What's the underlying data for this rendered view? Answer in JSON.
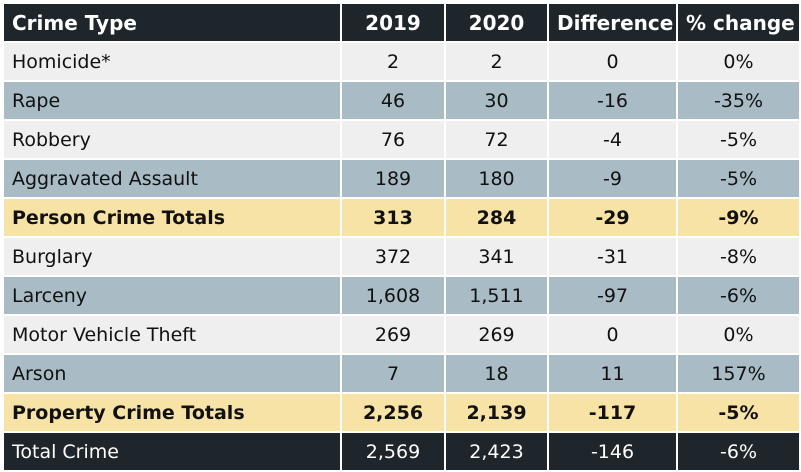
{
  "table": {
    "headers": [
      "Crime Type",
      "2019",
      "2020",
      "Difference",
      "% change"
    ],
    "rows": [
      {
        "type": "light",
        "cells": [
          "Homicide*",
          "2",
          "2",
          "0",
          "0%"
        ]
      },
      {
        "type": "blue",
        "cells": [
          "Rape",
          "46",
          "30",
          "-16",
          "-35%"
        ]
      },
      {
        "type": "light",
        "cells": [
          "Robbery",
          "76",
          "72",
          "-4",
          "-5%"
        ]
      },
      {
        "type": "blue",
        "cells": [
          "Aggravated Assault",
          "189",
          "180",
          "-9",
          "-5%"
        ]
      },
      {
        "type": "total",
        "cells": [
          "Person Crime Totals",
          "313",
          "284",
          "-29",
          "-9%"
        ]
      },
      {
        "type": "light",
        "cells": [
          "Burglary",
          "372",
          "341",
          "-31",
          "-8%"
        ]
      },
      {
        "type": "blue",
        "cells": [
          "Larceny",
          "1,608",
          "1,511",
          "-97",
          "-6%"
        ]
      },
      {
        "type": "light",
        "cells": [
          "Motor Vehicle Theft",
          "269",
          "269",
          "0",
          "0%"
        ]
      },
      {
        "type": "blue",
        "cells": [
          "Arson",
          "7",
          "18",
          "11",
          "157%"
        ]
      },
      {
        "type": "total",
        "cells": [
          "Property Crime Totals",
          "2,256",
          "2,139",
          "-117",
          "-5%"
        ]
      },
      {
        "type": "grand",
        "cells": [
          "Total Crime",
          "2,569",
          "2,423",
          "-146",
          "-6%"
        ]
      }
    ]
  },
  "colors": {
    "header_bg": "#1f262b",
    "row_light": "#efefef",
    "row_blue": "#a9bcc6",
    "row_total": "#f8e3a6"
  }
}
